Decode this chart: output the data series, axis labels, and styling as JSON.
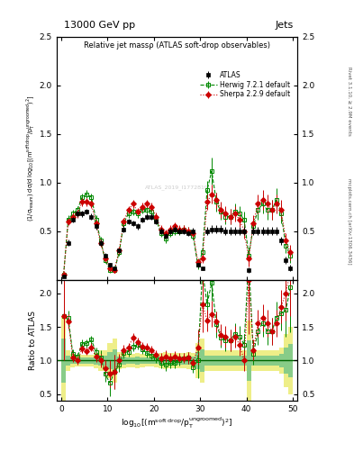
{
  "title_left": "13000 GeV pp",
  "title_right": "Jets",
  "plot_title": "Relative jet massρ (ATLAS soft-drop observables)",
  "watermark": "ATLAS_2019_I1772819",
  "right_label": "Rivet 3.1.10, ≥ 2.9M events",
  "right_label2": "mcplots.cern.ch [arXiv:1306.3436]",
  "ylabel_main": "(1/σ$_{resum}$) dσ/d log$_{10}$[(m$^{soft drop}$/p$_T^{ungroomed}$)$^2$]",
  "ylabel_ratio": "Ratio to ATLAS",
  "xlabel": "log$_{10}$[(m$^{soft drop}$/p$_T^{ungroomed}$)$^2$]",
  "xlim": [
    -1,
    51
  ],
  "ylim_main": [
    0,
    2.5
  ],
  "ylim_ratio": [
    0.4,
    2.2
  ],
  "yticks_main": [
    0.5,
    1.0,
    1.5,
    2.0,
    2.5
  ],
  "yticks_ratio": [
    0.5,
    1.0,
    1.5,
    2.0
  ],
  "xticks": [
    0,
    10,
    20,
    30,
    40,
    50
  ],
  "atlas_color": "#000000",
  "herwig_color": "#008800",
  "sherpa_color": "#cc0000",
  "band_green": "#88cc88",
  "band_yellow": "#eeee88",
  "x": [
    0.5,
    1.5,
    2.5,
    3.5,
    4.5,
    5.5,
    6.5,
    7.5,
    8.5,
    9.5,
    10.5,
    11.5,
    12.5,
    13.5,
    14.5,
    15.5,
    16.5,
    17.5,
    18.5,
    19.5,
    20.5,
    21.5,
    22.5,
    23.5,
    24.5,
    25.5,
    26.5,
    27.5,
    28.5,
    29.5,
    30.5,
    31.5,
    32.5,
    33.5,
    34.5,
    35.5,
    36.5,
    37.5,
    38.5,
    39.5,
    40.5,
    41.5,
    42.5,
    43.5,
    44.5,
    45.5,
    46.5,
    47.5,
    48.5,
    49.5
  ],
  "atlas_y": [
    0.03,
    0.38,
    0.62,
    0.68,
    0.68,
    0.7,
    0.65,
    0.55,
    0.38,
    0.25,
    0.15,
    0.12,
    0.3,
    0.52,
    0.6,
    0.58,
    0.55,
    0.62,
    0.65,
    0.65,
    0.6,
    0.5,
    0.45,
    0.5,
    0.52,
    0.5,
    0.5,
    0.48,
    0.5,
    0.15,
    0.12,
    0.5,
    0.52,
    0.52,
    0.52,
    0.5,
    0.5,
    0.5,
    0.5,
    0.5,
    0.1,
    0.5,
    0.5,
    0.5,
    0.5,
    0.5,
    0.5,
    0.4,
    0.2,
    0.12
  ],
  "herwig_y": [
    0.05,
    0.62,
    0.68,
    0.72,
    0.85,
    0.88,
    0.85,
    0.62,
    0.4,
    0.2,
    0.1,
    0.1,
    0.28,
    0.58,
    0.68,
    0.7,
    0.68,
    0.72,
    0.72,
    0.7,
    0.62,
    0.48,
    0.42,
    0.48,
    0.5,
    0.5,
    0.52,
    0.5,
    0.45,
    0.15,
    0.28,
    0.92,
    1.12,
    0.8,
    0.7,
    0.65,
    0.65,
    0.7,
    0.68,
    0.62,
    0.25,
    0.55,
    0.72,
    0.78,
    0.72,
    0.72,
    0.82,
    0.68,
    0.35,
    0.25
  ],
  "sherpa_y": [
    0.05,
    0.6,
    0.65,
    0.68,
    0.8,
    0.8,
    0.78,
    0.58,
    0.38,
    0.22,
    0.12,
    0.1,
    0.3,
    0.6,
    0.72,
    0.78,
    0.7,
    0.75,
    0.78,
    0.75,
    0.65,
    0.52,
    0.48,
    0.52,
    0.55,
    0.52,
    0.52,
    0.5,
    0.48,
    0.18,
    0.22,
    0.8,
    0.88,
    0.82,
    0.72,
    0.68,
    0.65,
    0.68,
    0.62,
    0.5,
    0.22,
    0.58,
    0.78,
    0.82,
    0.78,
    0.72,
    0.78,
    0.72,
    0.4,
    0.28
  ],
  "atlas_err": [
    0.01,
    0.03,
    0.03,
    0.03,
    0.03,
    0.03,
    0.03,
    0.03,
    0.03,
    0.02,
    0.02,
    0.02,
    0.02,
    0.03,
    0.03,
    0.03,
    0.03,
    0.03,
    0.03,
    0.03,
    0.03,
    0.03,
    0.03,
    0.03,
    0.03,
    0.03,
    0.03,
    0.03,
    0.03,
    0.02,
    0.02,
    0.04,
    0.04,
    0.04,
    0.04,
    0.04,
    0.04,
    0.04,
    0.04,
    0.04,
    0.03,
    0.04,
    0.04,
    0.04,
    0.04,
    0.04,
    0.04,
    0.04,
    0.04,
    0.03
  ],
  "herwig_err": [
    0.02,
    0.04,
    0.04,
    0.04,
    0.04,
    0.04,
    0.04,
    0.04,
    0.04,
    0.03,
    0.03,
    0.03,
    0.03,
    0.04,
    0.04,
    0.04,
    0.04,
    0.04,
    0.04,
    0.04,
    0.04,
    0.04,
    0.04,
    0.04,
    0.04,
    0.04,
    0.04,
    0.04,
    0.04,
    0.04,
    0.05,
    0.1,
    0.14,
    0.1,
    0.08,
    0.08,
    0.08,
    0.08,
    0.08,
    0.08,
    0.08,
    0.08,
    0.1,
    0.1,
    0.1,
    0.1,
    0.12,
    0.1,
    0.08,
    0.08
  ],
  "sherpa_err": [
    0.02,
    0.04,
    0.04,
    0.04,
    0.04,
    0.04,
    0.04,
    0.04,
    0.04,
    0.03,
    0.03,
    0.03,
    0.03,
    0.04,
    0.04,
    0.04,
    0.04,
    0.04,
    0.04,
    0.04,
    0.04,
    0.04,
    0.04,
    0.04,
    0.04,
    0.04,
    0.04,
    0.04,
    0.04,
    0.04,
    0.05,
    0.08,
    0.1,
    0.08,
    0.08,
    0.08,
    0.08,
    0.08,
    0.08,
    0.08,
    0.08,
    0.08,
    0.1,
    0.1,
    0.1,
    0.1,
    0.1,
    0.1,
    0.08,
    0.08
  ],
  "bin_width": 1.0
}
